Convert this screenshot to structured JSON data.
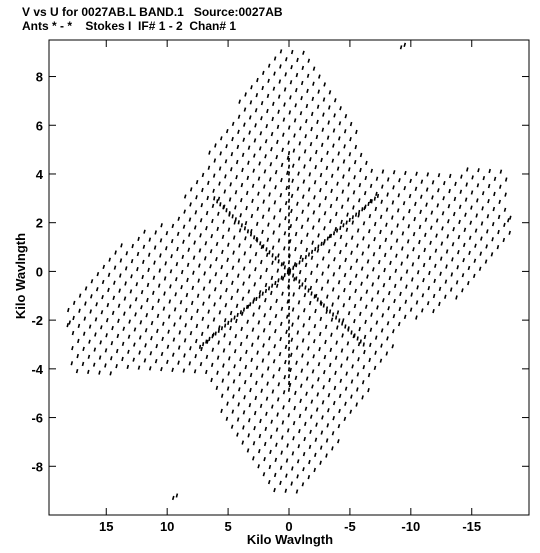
{
  "header": {
    "line1": "V vs U for 0027AB.L BAND.1   Source:0027AB",
    "line2": "Ants * - *    Stokes I  IF# 1 - 2  Chan# 1"
  },
  "chart_data": {
    "type": "scatter",
    "title": "V vs U for 0027AB.L BAND.1   Source:0027AB",
    "subtitle": "Ants * - *    Stokes I  IF# 1 - 2  Chan# 1",
    "xlabel": "Kilo Wavlngth",
    "ylabel": "Kilo Wavlngth",
    "xlim": [
      19.7,
      -19.7
    ],
    "ylim": [
      -10.0,
      9.5
    ],
    "x_ticks": [
      15,
      10,
      5,
      0,
      -5,
      -10,
      -15
    ],
    "x_tick_labels": [
      "15",
      "10",
      "5",
      "0",
      "-5",
      "-10",
      "-15"
    ],
    "y_ticks": [
      8,
      6,
      4,
      2,
      0,
      -2,
      -4,
      -6,
      -8
    ],
    "y_tick_labels": [
      "8",
      "6",
      "4",
      "2",
      "0",
      "-2",
      "-4",
      "-6",
      "-8"
    ],
    "grid": false,
    "legend": "none",
    "color": "#000000",
    "pattern": {
      "description": "hexagonal uv-coverage star, point-symmetric about origin",
      "arm_tips": [
        [
          -9.5,
          9.3
        ],
        [
          -9.2,
          9.2
        ],
        [
          -18.0,
          2.1
        ],
        [
          18.0,
          -2.1
        ],
        [
          9.2,
          -9.2
        ],
        [
          9.5,
          -9.3
        ]
      ]
    }
  }
}
